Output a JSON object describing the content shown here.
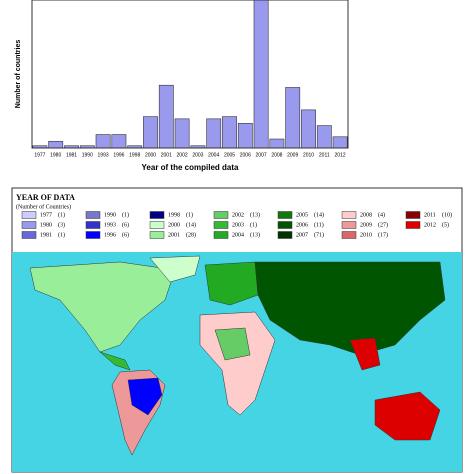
{
  "chart_data": {
    "type": "bar",
    "xlabel": "Year of the compiled data",
    "ylabel": "Number of countries",
    "categories": [
      "1977",
      "1980",
      "1981",
      "1990",
      "1993",
      "1996",
      "1998",
      "2000",
      "2001",
      "2002",
      "2003",
      "2004",
      "2005",
      "2006",
      "2007",
      "2008",
      "2009",
      "2010",
      "2011",
      "2012"
    ],
    "values": [
      1,
      3,
      1,
      1,
      6,
      6,
      1,
      14,
      28,
      13,
      1,
      13,
      14,
      11,
      71,
      4,
      27,
      17,
      10,
      5
    ],
    "value_labels": [
      "(1)",
      "(3)",
      "(1)",
      "(1)",
      "(6)",
      "(6)",
      "(1)",
      "(14)",
      "(28)",
      "(13)",
      "(1)",
      "(13)",
      "(14)",
      "(11)",
      "(71)",
      "(4)",
      "(27)",
      "(17)",
      "(10)",
      "(5)"
    ],
    "color": "#9999ee",
    "ylim": [
      0,
      66
    ]
  },
  "map": {
    "title": "YEAR OF DATA",
    "subtitle": "(Number of Countries)",
    "legend_colors": [
      "#ccccff",
      "#9999ee",
      "#6666dd",
      "#7777cc",
      "#3333cc",
      "#0000ff",
      "#000080",
      "#ccffcc",
      "#99ee99",
      "#66cc66",
      "#33bb33",
      "#22aa22",
      "#117711",
      "#005500",
      "#003300",
      "#ffcccc",
      "#ee9999",
      "#dd6666",
      "#880000",
      "#dd0000"
    ]
  }
}
